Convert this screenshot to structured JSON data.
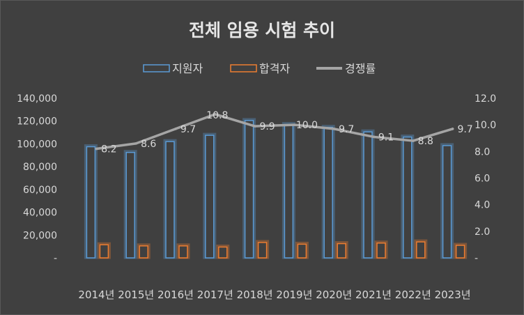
{
  "chart_data": {
    "type": "bar",
    "title": "전체 임용 시험 추이",
    "categories": [
      "2014년",
      "2015년",
      "2016년",
      "2017년",
      "2018년",
      "2019년",
      "2020년",
      "2021년",
      "2022년",
      "2023년"
    ],
    "series": [
      {
        "name": "지원자",
        "type": "bar",
        "axis": "left",
        "color": "#5B9BD5",
        "values": [
          97500,
          92500,
          102000,
          107500,
          120500,
          117000,
          114500,
          110500,
          106000,
          98500
        ]
      },
      {
        "name": "합격자",
        "type": "bar",
        "axis": "left",
        "color": "#ED7D31",
        "values": [
          11500,
          10500,
          10500,
          9500,
          13500,
          12000,
          12500,
          13000,
          14000,
          11000
        ]
      },
      {
        "name": "경쟁률",
        "type": "line",
        "axis": "right",
        "color": "#A5A5A5",
        "values": [
          8.2,
          8.6,
          9.7,
          10.8,
          9.9,
          10.0,
          9.7,
          9.1,
          8.8,
          9.7
        ]
      }
    ],
    "y_left": {
      "min": 0,
      "max": 140000,
      "step": 20000,
      "tick_labels": [
        "-",
        "20,000",
        "40,000",
        "60,000",
        "80,000",
        "100,000",
        "120,000",
        "140,000"
      ]
    },
    "y_right": {
      "min": 0,
      "max": 12,
      "step": 2,
      "tick_labels": [
        "-",
        "2.0",
        "4.0",
        "6.0",
        "8.0",
        "10.0",
        "12.0"
      ]
    },
    "data_labels": [
      "8.2",
      "8.6",
      "9.7",
      "10.8",
      "9.9",
      "10.0",
      "9.7",
      "9.1",
      "8.8",
      "9.7"
    ],
    "legend_position": "top",
    "grid": false,
    "background": "#404040",
    "text_color": "#D9D9D9"
  }
}
